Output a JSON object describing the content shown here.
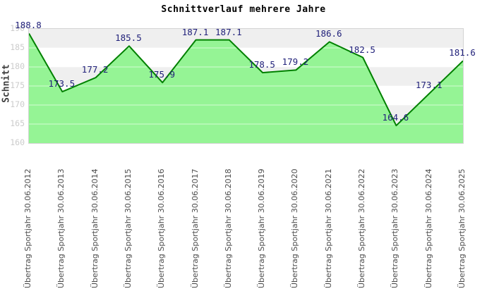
{
  "title": "Schnittverlauf mehrere Jahre",
  "chart_data": {
    "type": "area",
    "title": "Schnittverlauf mehrere Jahre",
    "xlabel": "",
    "ylabel": "Schnitt",
    "categories": [
      "Übertrag Sportjahr 30.06.2012",
      "Übertrag Sportjahr 30.06.2013",
      "Übertrag Sportjahr 30.06.2014",
      "Übertrag Sportjahr 30.06.2015",
      "Übertrag Sportjahr 30.06.2016",
      "Übertrag Sportjahr 30.06.2017",
      "Übertrag Sportjahr 30.06.2018",
      "Übertrag Sportjahr 30.06.2019",
      "Übertrag Sportjahr 30.06.2020",
      "Übertrag Sportjahr 30.06.2021",
      "Übertrag Sportjahr 30.06.2022",
      "Übertrag Sportjahr 30.06.2023",
      "Übertrag Sportjahr 30.06.2024",
      "Übertrag Sportjahr 30.06.2025"
    ],
    "values": [
      188.8,
      173.5,
      177.2,
      185.5,
      175.9,
      187.1,
      187.1,
      178.5,
      179.2,
      186.6,
      182.5,
      164.6,
      173.1,
      181.6
    ],
    "value_labels": [
      "188.8",
      "173.5",
      "177.2",
      "185.5",
      "175.9",
      "187.1",
      "187.1",
      "178.5",
      "179.2",
      "186.6",
      "182.5",
      "164.6",
      "173.1",
      "181.6"
    ],
    "ylim": [
      160,
      190
    ],
    "yticks": [
      190,
      185,
      180,
      175,
      170,
      165,
      160
    ],
    "grid": true,
    "legend_position": "none",
    "colors": {
      "fill": "#8ff38f",
      "line": "#008000",
      "value_label": "#21217a",
      "band_gray": "#efefef",
      "band_white": "#ffffff",
      "gridline": "rgba(255,255,255,0.6)",
      "tick_label": "#cccccc",
      "x_label": "#4d4d4d",
      "title": "#000000"
    }
  }
}
